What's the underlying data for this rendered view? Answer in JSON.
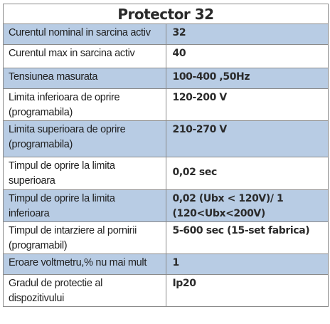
{
  "table": {
    "title": "Protector 32",
    "rows": [
      {
        "label": [
          "Curentul nominal in sarcina activ"
        ],
        "value": [
          "32"
        ]
      },
      {
        "label": [
          "Curentul max in sarcina activ"
        ],
        "value": [
          "40"
        ]
      },
      {
        "label": [
          "Tensiunea masurata"
        ],
        "value": [
          "100-400 ,50Hz"
        ]
      },
      {
        "label": [
          "Limita inferioara de oprire",
          "(programabila)"
        ],
        "value": [
          "120-200 V"
        ]
      },
      {
        "label": [
          "Limita superioara de oprire",
          "(programabila)"
        ],
        "value": [
          "210-270 V"
        ]
      },
      {
        "label": [
          "Timpul de oprire la limita",
          "superioara"
        ],
        "value": [
          "0,02 sec"
        ]
      },
      {
        "label": [
          "Timpul de oprire la limita",
          "inferioara"
        ],
        "value": [
          "0,02 (Ubx < 120V)/ 1",
          "(120<Ubx<200V)"
        ]
      },
      {
        "label": [
          "Timpul de intarziere al pornirii",
          "(programabil)"
        ],
        "value": [
          "5-600 sec (15-set fabrica)"
        ]
      },
      {
        "label": [
          "Eroare voltmetru,% nu mai mult"
        ],
        "value": [
          "1"
        ]
      },
      {
        "label": [
          "Gradul de protectie al",
          "dispozitivului"
        ],
        "value": [
          "Ip20"
        ]
      }
    ]
  },
  "colors": {
    "row_blue": "#b8cce4",
    "row_white": "#ffffff",
    "border": "#8a8a8a",
    "text": "#1f1f1f"
  }
}
